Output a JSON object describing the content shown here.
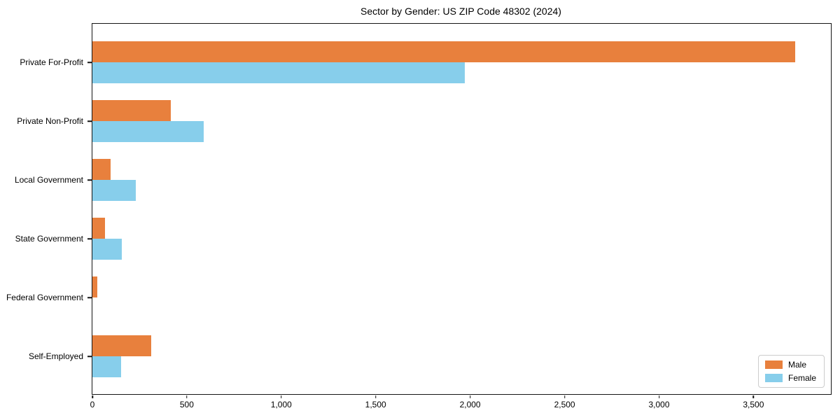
{
  "chart_data": {
    "type": "bar",
    "orientation": "horizontal",
    "title": "Sector by Gender: US ZIP Code 48302 (2024)",
    "categories": [
      "Private For-Profit",
      "Private Non-Profit",
      "Local Government",
      "State Government",
      "Federal Government",
      "Self-Employed"
    ],
    "series": [
      {
        "name": "Male",
        "color": "#e8803d",
        "values": [
          3720,
          415,
          95,
          65,
          25,
          310
        ]
      },
      {
        "name": "Female",
        "color": "#87ceeb",
        "values": [
          1970,
          590,
          230,
          155,
          0,
          150
        ]
      }
    ],
    "xlabel": "",
    "ylabel": "",
    "xlim": [
      0,
      3910
    ],
    "xticks": [
      0,
      500,
      1000,
      1500,
      2000,
      2500,
      3000,
      3500
    ],
    "xtick_labels": [
      "0",
      "500",
      "1,000",
      "1,500",
      "2,000",
      "2,500",
      "3,000",
      "3,500"
    ],
    "grid": false,
    "legend": {
      "position": "lower-right"
    }
  }
}
